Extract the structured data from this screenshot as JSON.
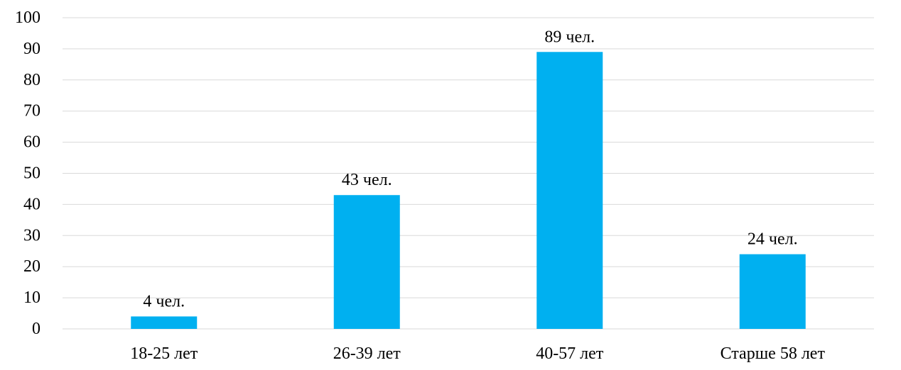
{
  "chart_data": {
    "type": "bar",
    "title": "",
    "xlabel": "",
    "ylabel": "",
    "categories": [
      "18-25 лет",
      "26-39 лет",
      "40-57 лет",
      "Старше 58 лет"
    ],
    "values": [
      4,
      43,
      89,
      24
    ],
    "data_labels": [
      "4 чел.",
      "43 чел.",
      "89 чел.",
      "24 чел."
    ],
    "ylim": [
      0,
      100
    ],
    "yticks": [
      "0",
      "10",
      "20",
      "30",
      "40",
      "50",
      "60",
      "70",
      "80",
      "90",
      "100"
    ],
    "grid": true,
    "legend": "none",
    "bar_color": "#00B0F0",
    "grid_color": "#D9D9D9"
  }
}
